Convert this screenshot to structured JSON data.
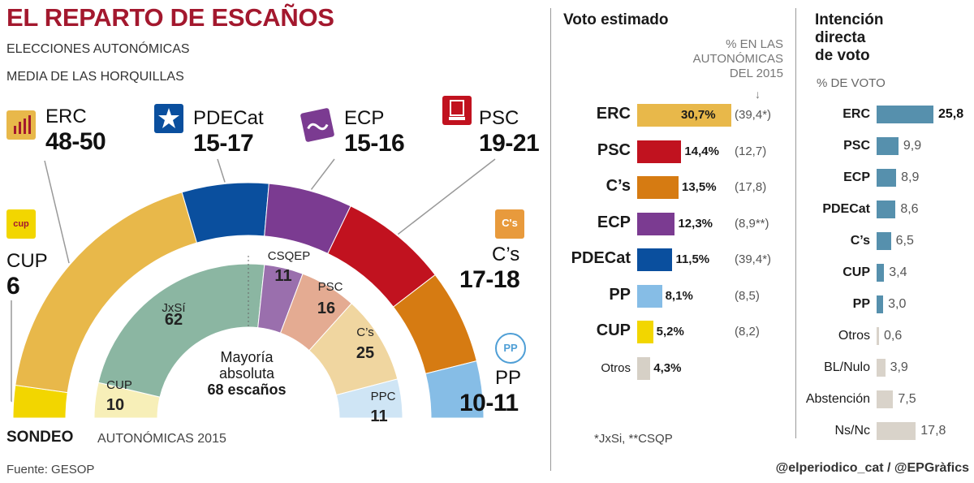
{
  "header": {
    "title": "EL REPARTO DE ESCAÑOS",
    "subtitle_1": "ELECCIONES AUTONÓMICAS",
    "subtitle_2": "MEDIA DE LAS HORQUILLAS"
  },
  "footer": {
    "sondeo_label": "SONDEO",
    "sondeo_year": "AUTONÓMICAS 2015",
    "source": "Fuente: GESOP",
    "credit": "@elperiodico_cat / @EPGràfics"
  },
  "colors": {
    "ERC": "#e8b84a",
    "PDECat": "#0a4f9e",
    "ECP": "#7b3b91",
    "PSC": "#c1121f",
    "Cs": "#d67b12",
    "PP": "#86bde6",
    "CUP": "#f2d600",
    "JxSi": "#8bb6a2",
    "CSQEP": "#9a6fad",
    "PSC2015": "#e4ab92",
    "Cs2015": "#f0d6a0",
    "PPC2015": "#cfe5f5",
    "CUP2015": "#f7efb8",
    "Otros": "#d6d0c6",
    "direct": "#5690ad",
    "light": "#d9d3ca"
  },
  "chart_data": [
    {
      "type": "pie",
      "title": "Sondeo — reparto de escaños (media de las horquillas)",
      "layout": "semicircle",
      "slices": [
        {
          "key": "CUP",
          "name": "CUP",
          "range": "6",
          "value": 6
        },
        {
          "key": "ERC",
          "name": "ERC",
          "range": "48-50",
          "value": 49
        },
        {
          "key": "PDECat",
          "name": "PDECat",
          "range": "15-17",
          "value": 16
        },
        {
          "key": "ECP",
          "name": "ECP",
          "range": "15-16",
          "value": 15.5
        },
        {
          "key": "PSC",
          "name": "PSC",
          "range": "19-21",
          "value": 20
        },
        {
          "key": "Cs",
          "name": "C’s",
          "range": "17-18",
          "value": 17.5
        },
        {
          "key": "PP",
          "name": "PP",
          "range": "10-11",
          "value": 10.5
        }
      ]
    },
    {
      "type": "pie",
      "title": "Autonómicas 2015",
      "layout": "semicircle",
      "majority": {
        "line1": "Mayoría",
        "line2": "absoluta",
        "line3": "68 escaños"
      },
      "slices": [
        {
          "key": "CUP2015",
          "name": "CUP",
          "value": 10
        },
        {
          "key": "JxSi",
          "name": "JxSí",
          "value": 62
        },
        {
          "key": "CSQEP",
          "name": "CSQEP",
          "value": 11
        },
        {
          "key": "PSC2015",
          "name": "PSC",
          "value": 16
        },
        {
          "key": "Cs2015",
          "name": "C’s",
          "value": 25
        },
        {
          "key": "PPC2015",
          "name": "PPC",
          "value": 11
        }
      ]
    },
    {
      "type": "bar",
      "orientation": "horizontal",
      "title": "Voto estimado",
      "note": [
        "% EN LAS",
        "AUTONÓMICAS",
        "DEL 2015"
      ],
      "footnote": "*JxSi, **CSQP",
      "xlim": [
        0,
        30.7
      ],
      "rows": [
        {
          "key": "ERC",
          "label": "ERC",
          "value": 30.7,
          "display": "30,7%",
          "prev": "(39,4*)"
        },
        {
          "key": "PSC",
          "label": "PSC",
          "value": 14.4,
          "display": "14,4%",
          "prev": "(12,7)"
        },
        {
          "key": "Cs",
          "label": "C’s",
          "value": 13.5,
          "display": "13,5%",
          "prev": "(17,8)"
        },
        {
          "key": "ECP",
          "label": "ECP",
          "value": 12.3,
          "display": "12,3%",
          "prev": "(8,9**)"
        },
        {
          "key": "PDECat",
          "label": "PDECat",
          "value": 11.5,
          "display": "11,5%",
          "prev": "(39,4*)"
        },
        {
          "key": "PP",
          "label": "PP",
          "value": 8.1,
          "display": "8,1%",
          "prev": "(8,5)"
        },
        {
          "key": "CUP",
          "label": "CUP",
          "value": 5.2,
          "display": "5,2%",
          "prev": "(8,2)"
        },
        {
          "key": "Otros",
          "label": "Otros",
          "value": 4.3,
          "display": "4,3%",
          "prev": ""
        }
      ]
    },
    {
      "type": "bar",
      "orientation": "horizontal",
      "title": [
        "Intención",
        "directa",
        "de voto"
      ],
      "subtitle": "% DE VOTO",
      "xlim": [
        0,
        25.8
      ],
      "rows": [
        {
          "label": "ERC",
          "value": 25.8,
          "display": "25,8",
          "bold": true
        },
        {
          "label": "PSC",
          "value": 9.9,
          "display": "9,9",
          "bold": true
        },
        {
          "label": "ECP",
          "value": 8.9,
          "display": "8,9",
          "bold": true
        },
        {
          "label": "PDECat",
          "value": 8.6,
          "display": "8,6",
          "bold": true
        },
        {
          "label": "C’s",
          "value": 6.5,
          "display": "6,5",
          "bold": true
        },
        {
          "label": "CUP",
          "value": 3.4,
          "display": "3,4",
          "bold": true
        },
        {
          "label": "PP",
          "value": 3.0,
          "display": "3,0",
          "bold": true
        },
        {
          "label": "Otros",
          "value": 0.6,
          "display": "0,6",
          "bold": false
        },
        {
          "label": "BL/Nulo",
          "value": 3.9,
          "display": "3,9",
          "bold": false
        },
        {
          "label": "Abstención",
          "value": 7.5,
          "display": "7,5",
          "bold": false
        },
        {
          "label": "Ns/Nc",
          "value": 17.8,
          "display": "17,8",
          "bold": false
        }
      ]
    }
  ],
  "logos": {
    "ERC": "ERC-logo-icon",
    "PDECat": "PDECat-logo-icon",
    "ECP": "ECP-logo-icon",
    "PSC": "PSC-logo-icon",
    "CUP": "CUP-logo-icon",
    "Cs": "Cs-logo-icon",
    "PP": "PP-logo-icon",
    "CUP_text": "cup",
    "Cs_text": "C's",
    "PP_text": "PP"
  }
}
